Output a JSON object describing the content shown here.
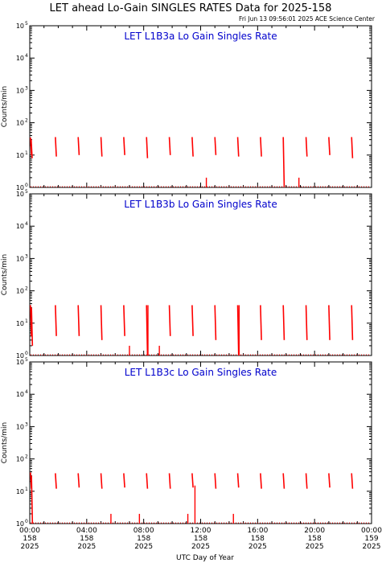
{
  "title": "LET ahead Lo-Gain SINGLES RATES Data for 2025-158",
  "timestamp": "Fri Jun 13 09:56:01 2025 ACE Science Center",
  "colors": {
    "data": "#ff0000",
    "panel_title": "#0000cc",
    "axes": "#000000"
  },
  "chart_data": [
    {
      "type": "line",
      "title": "LET L1B3a Lo Gain Singles Rate",
      "ylabel": "Counts/min",
      "yscale": "log",
      "ylim": [
        1,
        100000
      ],
      "xlim_hours": [
        0,
        24
      ],
      "bursts": [
        {
          "t": 0.05,
          "low": 10,
          "high": 35
        },
        {
          "t": 0.1,
          "low": 8,
          "high": 30
        },
        {
          "t": 1.8,
          "low": 9,
          "high": 36
        },
        {
          "t": 3.4,
          "low": 10,
          "high": 36
        },
        {
          "t": 5.0,
          "low": 9,
          "high": 36
        },
        {
          "t": 6.6,
          "low": 10,
          "high": 36
        },
        {
          "t": 8.2,
          "low": 8,
          "high": 36
        },
        {
          "t": 9.8,
          "low": 10,
          "high": 36
        },
        {
          "t": 11.4,
          "low": 9,
          "high": 36
        },
        {
          "t": 13.0,
          "low": 10,
          "high": 36
        },
        {
          "t": 14.6,
          "low": 9,
          "high": 36
        },
        {
          "t": 16.2,
          "low": 9,
          "high": 36
        },
        {
          "t": 17.8,
          "low": 1,
          "high": 36
        },
        {
          "t": 19.4,
          "low": 9,
          "high": 36
        },
        {
          "t": 21.0,
          "low": 10,
          "high": 36
        },
        {
          "t": 22.6,
          "low": 8,
          "high": 36
        }
      ],
      "spikes": [
        {
          "t": 12.4,
          "value": 2
        },
        {
          "t": 18.9,
          "value": 2
        }
      ]
    },
    {
      "type": "line",
      "title": "LET L1B3b Lo Gain Singles Rate",
      "ylabel": "Counts/min",
      "yscale": "log",
      "ylim": [
        1,
        100000
      ],
      "xlim_hours": [
        0,
        24
      ],
      "bursts": [
        {
          "t": 0.05,
          "low": 4,
          "high": 36
        },
        {
          "t": 0.12,
          "low": 2,
          "high": 30
        },
        {
          "t": 1.8,
          "low": 4,
          "high": 36
        },
        {
          "t": 3.4,
          "low": 4,
          "high": 36
        },
        {
          "t": 5.0,
          "low": 3,
          "high": 36
        },
        {
          "t": 6.6,
          "low": 4,
          "high": 36
        },
        {
          "t": 8.2,
          "low": 1,
          "high": 36
        },
        {
          "t": 9.8,
          "low": 4,
          "high": 36
        },
        {
          "t": 11.4,
          "low": 4,
          "high": 36
        },
        {
          "t": 13.0,
          "low": 3,
          "high": 36
        },
        {
          "t": 14.6,
          "low": 1,
          "high": 36
        },
        {
          "t": 16.2,
          "low": 3,
          "high": 36
        },
        {
          "t": 17.8,
          "low": 3,
          "high": 36
        },
        {
          "t": 19.4,
          "low": 3,
          "high": 36
        },
        {
          "t": 21.0,
          "low": 3,
          "high": 36
        },
        {
          "t": 22.6,
          "low": 3,
          "high": 36
        }
      ],
      "spikes": [
        {
          "t": 7.0,
          "value": 2
        },
        {
          "t": 8.3,
          "value": 36
        },
        {
          "t": 9.1,
          "value": 2
        },
        {
          "t": 14.7,
          "value": 36
        }
      ]
    },
    {
      "type": "line",
      "title": "LET L1B3c Lo Gain Singles Rate",
      "ylabel": "Counts/min",
      "yscale": "log",
      "ylim": [
        1,
        100000
      ],
      "xlim_hours": [
        0,
        24
      ],
      "bursts": [
        {
          "t": 0.05,
          "low": 12,
          "high": 38
        },
        {
          "t": 0.12,
          "low": 1,
          "high": 30
        },
        {
          "t": 1.8,
          "low": 12,
          "high": 36
        },
        {
          "t": 3.4,
          "low": 13,
          "high": 36
        },
        {
          "t": 5.0,
          "low": 12,
          "high": 36
        },
        {
          "t": 6.6,
          "low": 13,
          "high": 36
        },
        {
          "t": 8.2,
          "low": 12,
          "high": 36
        },
        {
          "t": 9.8,
          "low": 12,
          "high": 36
        },
        {
          "t": 11.4,
          "low": 13,
          "high": 36
        },
        {
          "t": 13.0,
          "low": 12,
          "high": 36
        },
        {
          "t": 14.6,
          "low": 13,
          "high": 36
        },
        {
          "t": 16.2,
          "low": 12,
          "high": 36
        },
        {
          "t": 17.8,
          "low": 12,
          "high": 36
        },
        {
          "t": 19.4,
          "low": 12,
          "high": 36
        },
        {
          "t": 21.0,
          "low": 13,
          "high": 36
        },
        {
          "t": 22.6,
          "low": 12,
          "high": 36
        }
      ],
      "spikes": [
        {
          "t": 5.7,
          "value": 2
        },
        {
          "t": 7.7,
          "value": 2
        },
        {
          "t": 11.1,
          "value": 2
        },
        {
          "t": 11.6,
          "value": 15
        },
        {
          "t": 14.3,
          "value": 2
        }
      ]
    }
  ],
  "y_tick_labels": [
    "10",
    "10",
    "10",
    "10",
    "10",
    "10"
  ],
  "y_tick_exponents": [
    "0",
    "1",
    "2",
    "3",
    "4",
    "5"
  ],
  "x_ticks": [
    {
      "time": "00:00",
      "day": "158",
      "year": "2025"
    },
    {
      "time": "04:00",
      "day": "158",
      "year": "2025"
    },
    {
      "time": "08:00",
      "day": "158",
      "year": "2025"
    },
    {
      "time": "12:00",
      "day": "158",
      "year": "2025"
    },
    {
      "time": "16:00",
      "day": "158",
      "year": "2025"
    },
    {
      "time": "20:00",
      "day": "158",
      "year": "2025"
    },
    {
      "time": "00:00",
      "day": "159",
      "year": "2025"
    }
  ],
  "xlabel": "UTC Day of Year"
}
